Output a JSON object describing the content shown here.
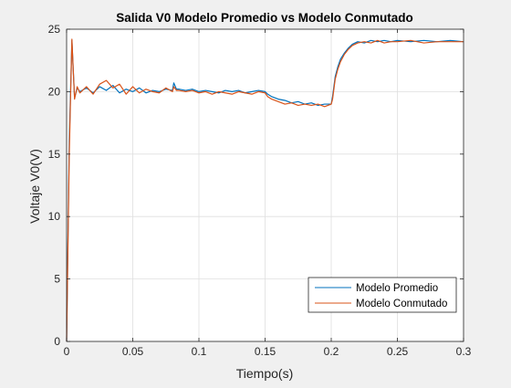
{
  "chart_data": {
    "type": "line",
    "title": "Salida V0 Modelo Promedio vs Modelo Conmutado",
    "xlabel": "Tiempo(s)",
    "ylabel": "Voltaje V0(V)",
    "xlim": [
      0,
      0.3
    ],
    "ylim": [
      0,
      25
    ],
    "xticks": [
      0,
      0.05,
      0.1,
      0.15,
      0.2,
      0.25,
      0.3
    ],
    "xtick_labels": [
      "0",
      "0.05",
      "0.1",
      "0.15",
      "0.2",
      "0.25",
      "0.3"
    ],
    "yticks": [
      0,
      5,
      10,
      15,
      20,
      25
    ],
    "ytick_labels": [
      "0",
      "5",
      "10",
      "15",
      "20",
      "25"
    ],
    "grid": true,
    "legend_position": "bottom-right",
    "series": [
      {
        "name": "Modelo Promedio",
        "color": "#0072BD",
        "x": [
          0,
          0.002,
          0.004,
          0.006,
          0.008,
          0.01,
          0.015,
          0.02,
          0.025,
          0.03,
          0.035,
          0.04,
          0.045,
          0.05,
          0.055,
          0.06,
          0.065,
          0.07,
          0.075,
          0.08,
          0.081,
          0.083,
          0.085,
          0.09,
          0.095,
          0.1,
          0.105,
          0.11,
          0.115,
          0.12,
          0.125,
          0.13,
          0.135,
          0.14,
          0.145,
          0.15,
          0.152,
          0.155,
          0.16,
          0.165,
          0.17,
          0.175,
          0.18,
          0.185,
          0.19,
          0.195,
          0.2,
          0.201,
          0.202,
          0.203,
          0.205,
          0.207,
          0.21,
          0.213,
          0.216,
          0.22,
          0.225,
          0.23,
          0.235,
          0.24,
          0.245,
          0.25,
          0.26,
          0.27,
          0.28,
          0.29,
          0.3
        ],
        "y": [
          0,
          16,
          24.1,
          19.5,
          20.3,
          20.0,
          20.3,
          19.9,
          20.4,
          20.1,
          20.5,
          19.9,
          20.2,
          20.0,
          20.3,
          19.9,
          20.1,
          20.0,
          20.2,
          20.1,
          20.7,
          20.2,
          20.2,
          20.1,
          20.2,
          20.0,
          20.1,
          20.0,
          19.9,
          20.1,
          20.0,
          20.1,
          19.9,
          20.0,
          20.1,
          20.0,
          19.8,
          19.6,
          19.4,
          19.3,
          19.1,
          19.2,
          19.0,
          19.1,
          18.9,
          19.0,
          19.0,
          19.6,
          20.4,
          21.2,
          22.0,
          22.6,
          23.1,
          23.5,
          23.8,
          24.0,
          23.9,
          24.1,
          24.0,
          24.1,
          24.0,
          24.1,
          24.0,
          24.1,
          24.0,
          24.1,
          24.0
        ]
      },
      {
        "name": "Modelo Conmutado",
        "color": "#D95319",
        "x": [
          0,
          0.002,
          0.004,
          0.006,
          0.008,
          0.01,
          0.015,
          0.02,
          0.025,
          0.03,
          0.035,
          0.04,
          0.045,
          0.05,
          0.055,
          0.06,
          0.065,
          0.07,
          0.075,
          0.08,
          0.081,
          0.083,
          0.085,
          0.09,
          0.095,
          0.1,
          0.105,
          0.11,
          0.115,
          0.12,
          0.125,
          0.13,
          0.135,
          0.14,
          0.145,
          0.15,
          0.152,
          0.155,
          0.16,
          0.165,
          0.17,
          0.175,
          0.18,
          0.185,
          0.19,
          0.195,
          0.2,
          0.201,
          0.202,
          0.203,
          0.205,
          0.207,
          0.21,
          0.213,
          0.216,
          0.22,
          0.225,
          0.23,
          0.235,
          0.24,
          0.245,
          0.25,
          0.26,
          0.27,
          0.28,
          0.29,
          0.3
        ],
        "y": [
          0,
          15,
          24.2,
          19.4,
          20.4,
          19.9,
          20.4,
          19.8,
          20.6,
          20.9,
          20.3,
          20.6,
          19.8,
          20.4,
          19.9,
          20.2,
          20.0,
          19.9,
          20.3,
          20.0,
          20.4,
          20.1,
          20.1,
          20.0,
          20.1,
          19.9,
          20.0,
          19.8,
          20.0,
          19.9,
          19.8,
          20.0,
          19.9,
          19.8,
          20.0,
          19.9,
          19.6,
          19.4,
          19.2,
          19.0,
          19.1,
          18.9,
          19.0,
          18.9,
          19.0,
          18.8,
          19.0,
          19.4,
          20.2,
          21.0,
          21.8,
          22.4,
          23.0,
          23.4,
          23.7,
          23.9,
          24.0,
          23.9,
          24.1,
          23.9,
          24.0,
          24.0,
          24.1,
          23.9,
          24.0,
          24.0,
          24.0
        ]
      }
    ]
  }
}
